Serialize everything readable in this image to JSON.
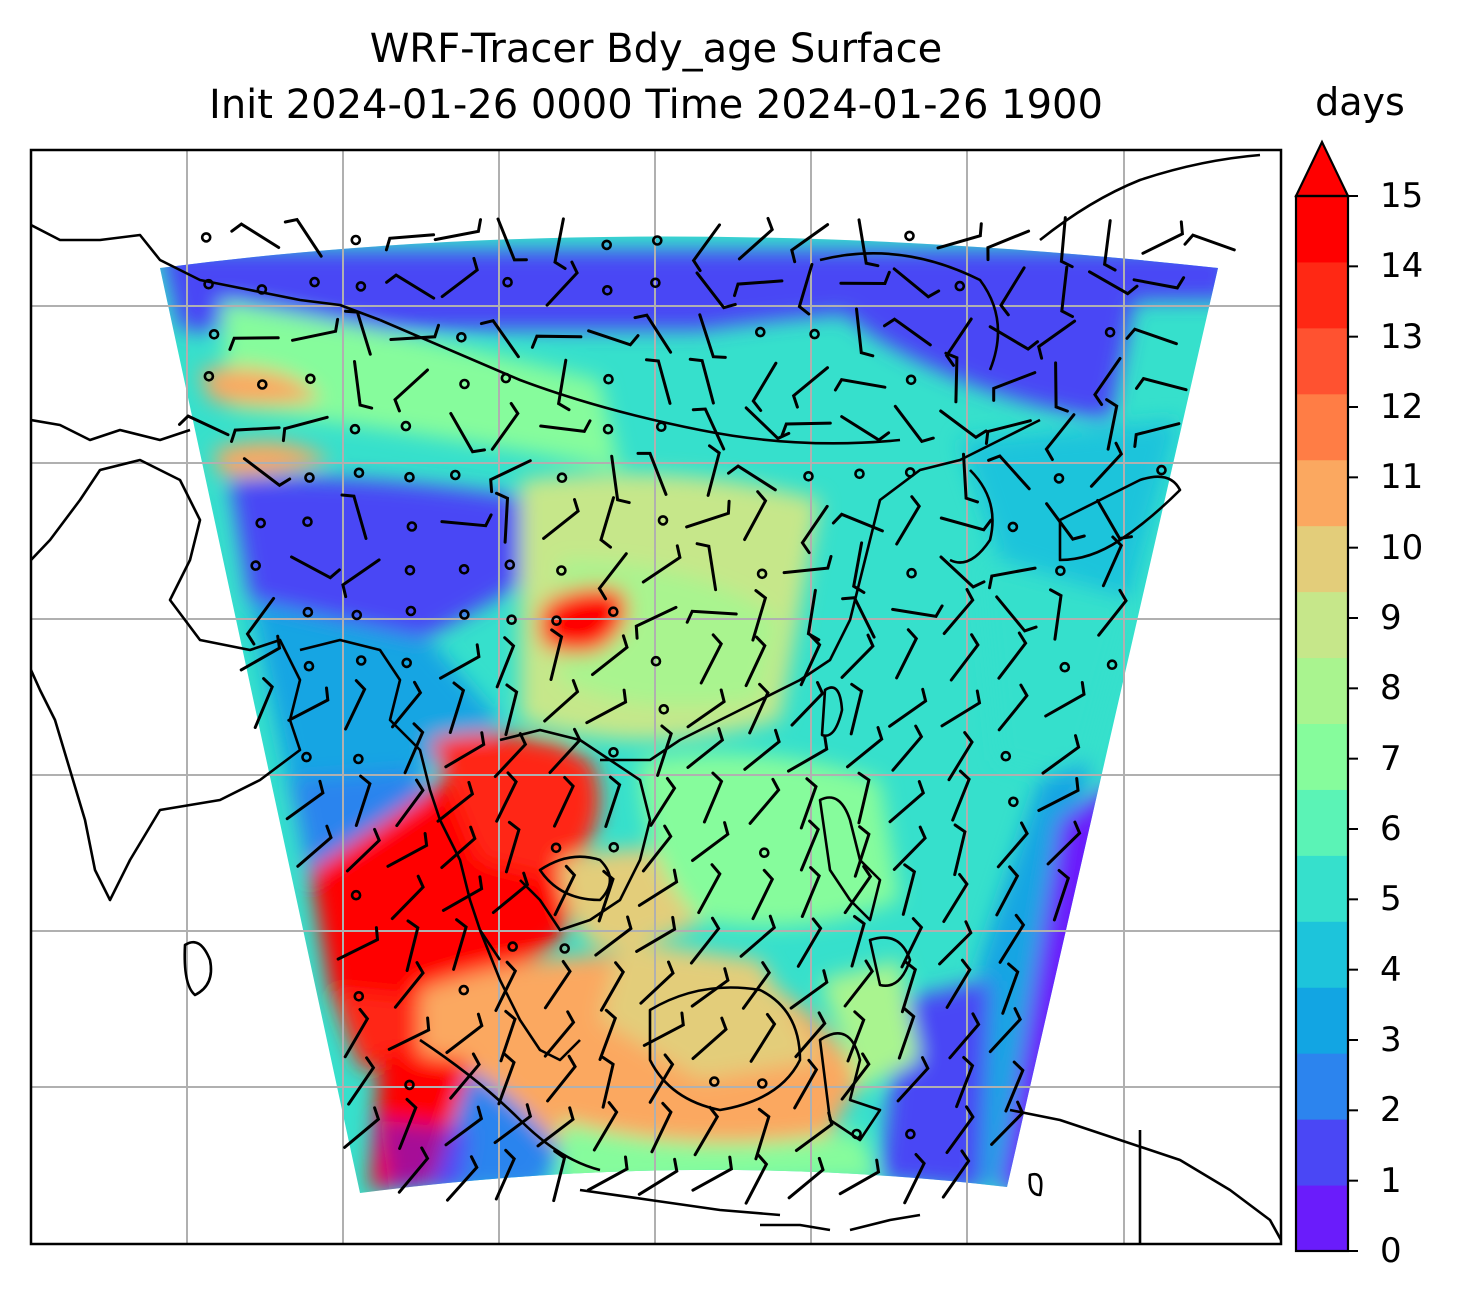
{
  "title": {
    "line1": "WRF-Tracer Bdy_age Surface",
    "line2": "Init 2024-01-26 0000 Time 2024-01-26 1900"
  },
  "colorbar": {
    "units": "days",
    "ticks": [
      "0",
      "1",
      "2",
      "3",
      "4",
      "5",
      "6",
      "7",
      "8",
      "9",
      "10",
      "11",
      "12",
      "13",
      "14",
      "15"
    ],
    "colors": [
      "#6a1cfb",
      "#4a47f5",
      "#2c84ee",
      "#12a5e3",
      "#1dc4db",
      "#36e0cc",
      "#5bf3b6",
      "#86fc9c",
      "#a9f48f",
      "#c6e78a",
      "#e3cd7a",
      "#fba860",
      "#ff7d45",
      "#ff5230",
      "#ff2814",
      "#ff0000"
    ],
    "extend": "max"
  },
  "map": {
    "domain_colors": {
      "background": "#36e0cc",
      "young_edges": "#6a1cfb",
      "old_air": "#ff0000"
    },
    "gridlines": "on",
    "barbs": "wind"
  }
}
